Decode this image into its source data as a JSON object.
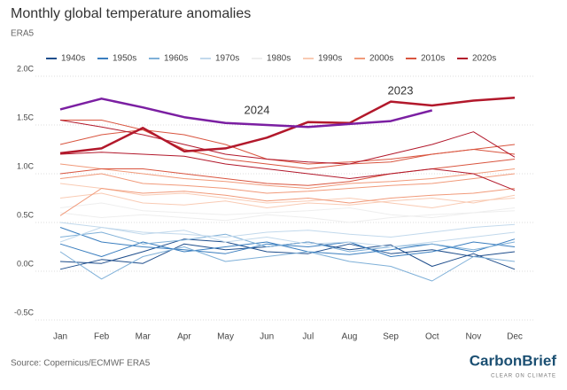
{
  "chart_data": {
    "type": "line",
    "title": "Monthly global temperature anomalies",
    "subtitle": "ERA5",
    "source": "Source: Copernicus/ECMWF ERA5",
    "logo": {
      "name": "CarbonBrief",
      "tagline": "CLEAR ON CLIMATE"
    },
    "categories": [
      "Jan",
      "Feb",
      "Mar",
      "Apr",
      "May",
      "Jun",
      "Jul",
      "Aug",
      "Sep",
      "Oct",
      "Nov",
      "Dec"
    ],
    "ylim": [
      -0.5,
      2.0
    ],
    "yticks": [
      {
        "value": -0.5,
        "label": "-0.5C"
      },
      {
        "value": 0.0,
        "label": "0.0C"
      },
      {
        "value": 0.5,
        "label": "0.5C"
      },
      {
        "value": 1.0,
        "label": "1.0C"
      },
      {
        "value": 1.5,
        "label": "1.5C"
      },
      {
        "value": 2.0,
        "label": "2.0C"
      }
    ],
    "grid": true,
    "legend": "top",
    "series": [
      {
        "name": "1940s",
        "color": "#1f4e8c",
        "lines": [
          [
            0.02,
            0.12,
            0.08,
            0.28,
            0.22,
            0.25,
            0.3,
            0.22,
            0.27,
            0.05,
            0.18,
            0.02
          ],
          [
            0.1,
            0.08,
            0.2,
            0.33,
            0.3,
            0.2,
            0.18,
            0.28,
            0.18,
            0.22,
            0.15,
            0.2
          ]
        ]
      },
      {
        "name": "1950s",
        "color": "#3a7ebf",
        "lines": [
          [
            0.28,
            0.15,
            0.3,
            0.2,
            0.25,
            0.3,
            0.2,
            0.17,
            0.22,
            0.28,
            0.2,
            0.33
          ],
          [
            0.45,
            0.3,
            0.25,
            0.22,
            0.18,
            0.28,
            0.25,
            0.3,
            0.15,
            0.2,
            0.3,
            0.25
          ]
        ]
      },
      {
        "name": "1960s",
        "color": "#7fb0d8",
        "lines": [
          [
            0.35,
            0.4,
            0.28,
            0.32,
            0.38,
            0.25,
            0.3,
            0.2,
            0.25,
            0.28,
            0.22,
            0.3
          ],
          [
            0.2,
            -0.08,
            0.15,
            0.25,
            0.1,
            0.15,
            0.2,
            0.1,
            0.05,
            -0.1,
            0.15,
            0.1
          ]
        ]
      },
      {
        "name": "1970s",
        "color": "#c2d9ec",
        "lines": [
          [
            0.5,
            0.45,
            0.4,
            0.38,
            0.35,
            0.4,
            0.42,
            0.38,
            0.35,
            0.4,
            0.45,
            0.48
          ],
          [
            0.3,
            0.45,
            0.38,
            0.42,
            0.3,
            0.35,
            0.28,
            0.3,
            0.25,
            0.3,
            0.35,
            0.4
          ]
        ]
      },
      {
        "name": "1980s",
        "color": "#eeeeee",
        "lines": [
          [
            0.6,
            0.55,
            0.58,
            0.55,
            0.52,
            0.58,
            0.55,
            0.5,
            0.55,
            0.58,
            0.6,
            0.62
          ],
          [
            0.65,
            0.7,
            0.62,
            0.6,
            0.58,
            0.6,
            0.62,
            0.65,
            0.58,
            0.55,
            0.6,
            0.65
          ]
        ]
      },
      {
        "name": "1990s",
        "color": "#f9cbb4",
        "lines": [
          [
            0.75,
            0.8,
            0.7,
            0.68,
            0.72,
            0.65,
            0.7,
            0.68,
            0.72,
            0.75,
            0.7,
            0.78
          ],
          [
            0.9,
            0.85,
            0.78,
            0.8,
            0.75,
            0.7,
            0.72,
            0.75,
            0.7,
            0.65,
            0.72,
            0.75
          ]
        ]
      },
      {
        "name": "2000s",
        "color": "#f19a7a",
        "lines": [
          [
            0.95,
            1.0,
            0.9,
            0.88,
            0.85,
            0.8,
            0.82,
            0.85,
            0.88,
            0.9,
            0.95,
            1.0
          ],
          [
            0.57,
            0.85,
            0.8,
            0.82,
            0.78,
            0.72,
            0.75,
            0.7,
            0.75,
            0.78,
            0.8,
            0.85
          ],
          [
            1.1,
            1.05,
            1.0,
            0.95,
            0.92,
            0.88,
            0.85,
            0.9,
            0.92,
            0.95,
            1.0,
            1.05
          ]
        ]
      },
      {
        "name": "2010s",
        "color": "#d9553f",
        "lines": [
          [
            1.3,
            1.4,
            1.45,
            1.25,
            1.15,
            1.1,
            1.05,
            1.1,
            1.12,
            1.2,
            1.25,
            1.3
          ],
          [
            1.55,
            1.55,
            1.45,
            1.4,
            1.3,
            1.15,
            1.1,
            1.12,
            1.15,
            1.2,
            1.25,
            1.2
          ],
          [
            1.0,
            1.05,
            1.05,
            1.0,
            0.95,
            0.9,
            0.88,
            0.92,
            1.0,
            1.05,
            1.1,
            1.15
          ]
        ]
      },
      {
        "name": "2020s",
        "color": "#b2182b",
        "lines": [
          [
            1.55,
            1.48,
            1.4,
            1.3,
            1.2,
            1.15,
            1.12,
            1.1,
            1.2,
            1.3,
            1.43,
            1.17
          ],
          [
            1.2,
            1.22,
            1.2,
            1.18,
            1.1,
            1.05,
            1.0,
            0.95,
            1.0,
            1.05,
            1.0,
            0.83
          ]
        ]
      }
    ],
    "highlights": [
      {
        "name": "2023",
        "color": "#b2182b",
        "values": [
          1.21,
          1.26,
          1.47,
          1.23,
          1.26,
          1.37,
          1.53,
          1.52,
          1.74,
          1.7,
          1.75,
          1.78
        ]
      },
      {
        "name": "2024",
        "color": "#7b1fa2",
        "values": [
          1.66,
          1.77,
          1.68,
          1.58,
          1.52,
          1.5,
          1.48,
          1.51,
          1.54,
          1.65,
          null,
          null
        ]
      }
    ]
  }
}
